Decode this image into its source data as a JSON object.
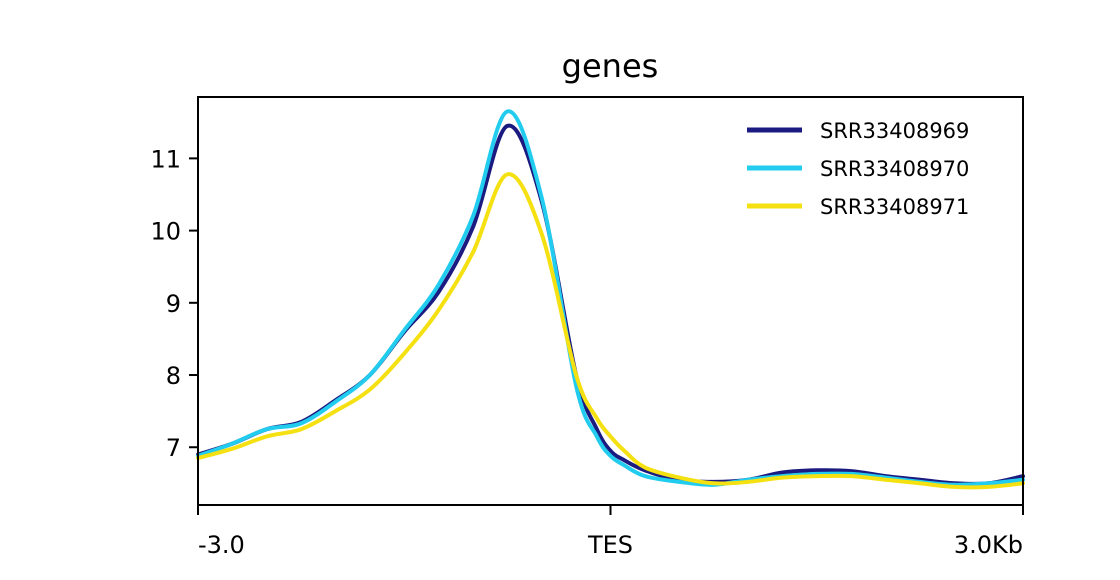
{
  "chart_data": {
    "type": "line",
    "title": "genes",
    "xlabel": "",
    "ylabel": "",
    "xlim": [
      -3.0,
      3.0
    ],
    "ylim": [
      6.2,
      11.85
    ],
    "x_ticks": [
      {
        "value": -3.0,
        "label": "-3.0"
      },
      {
        "value": 0.0,
        "label": "TES"
      },
      {
        "value": 3.0,
        "label": "3.0Kb"
      }
    ],
    "y_ticks": [
      {
        "value": 7,
        "label": "7"
      },
      {
        "value": 8,
        "label": "8"
      },
      {
        "value": 9,
        "label": "9"
      },
      {
        "value": 10,
        "label": "10"
      },
      {
        "value": 11,
        "label": "11"
      }
    ],
    "legend_position": "top-right",
    "x": [
      -3.0,
      -2.75,
      -2.5,
      -2.25,
      -2.0,
      -1.75,
      -1.5,
      -1.25,
      -1.0,
      -0.75,
      -0.5,
      -0.25,
      -0.1,
      0.0,
      0.1,
      0.25,
      0.5,
      0.75,
      1.0,
      1.25,
      1.5,
      1.75,
      2.0,
      2.25,
      2.5,
      2.75,
      3.0
    ],
    "series": [
      {
        "name": "SRR33408969",
        "color": "#1a1a80",
        "values": [
          6.9,
          7.05,
          7.25,
          7.35,
          7.65,
          8.0,
          8.6,
          9.15,
          10.05,
          11.45,
          10.4,
          8.0,
          7.25,
          6.95,
          6.82,
          6.68,
          6.55,
          6.52,
          6.55,
          6.65,
          6.68,
          6.67,
          6.6,
          6.55,
          6.5,
          6.5,
          6.6
        ]
      },
      {
        "name": "SRR33408970",
        "color": "#22ccee",
        "values": [
          6.88,
          7.05,
          7.25,
          7.33,
          7.63,
          8.0,
          8.62,
          9.25,
          10.2,
          11.65,
          10.45,
          7.85,
          7.15,
          6.88,
          6.75,
          6.6,
          6.52,
          6.48,
          6.55,
          6.6,
          6.63,
          6.63,
          6.58,
          6.52,
          6.48,
          6.5,
          6.55
        ]
      },
      {
        "name": "SRR33408971",
        "color": "#f5e011",
        "values": [
          6.85,
          6.98,
          7.15,
          7.25,
          7.5,
          7.8,
          8.3,
          8.9,
          9.7,
          10.78,
          9.95,
          8.0,
          7.4,
          7.15,
          6.95,
          6.72,
          6.58,
          6.5,
          6.52,
          6.58,
          6.6,
          6.6,
          6.55,
          6.5,
          6.45,
          6.45,
          6.5
        ]
      }
    ]
  }
}
